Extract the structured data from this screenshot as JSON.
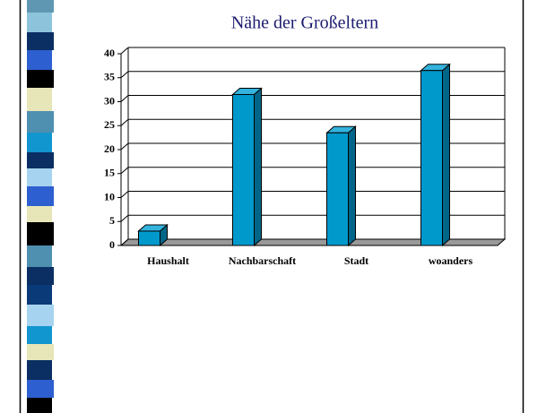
{
  "chart_data": {
    "type": "bar3d",
    "title": "Nähe der Großeltern",
    "categories": [
      "Haushalt",
      "Nachbarschaft",
      "Stadt",
      "woanders"
    ],
    "values": [
      3,
      31.5,
      23.5,
      36.5
    ],
    "color": "#0099cc",
    "ylim": [
      0,
      40
    ],
    "yticks": [
      0,
      5,
      10,
      15,
      20,
      25,
      30,
      35,
      40
    ],
    "grid": true
  }
}
